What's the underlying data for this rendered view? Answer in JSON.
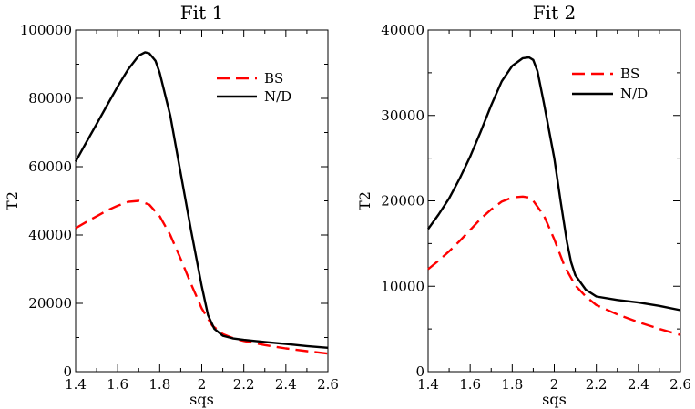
{
  "chart_data": [
    {
      "type": "line",
      "title": "Fit 1",
      "xlabel": "sqs",
      "ylabel": "T2",
      "xlim": [
        1.4,
        2.6
      ],
      "ylim": [
        0,
        100000
      ],
      "xticks": [
        1.4,
        1.6,
        1.8,
        2.0,
        2.2,
        2.4,
        2.6
      ],
      "xtick_labels": [
        "1.4",
        "1.6",
        "1.8",
        "2",
        "2.2",
        "2.4",
        "2.6"
      ],
      "yticks": [
        0,
        20000,
        40000,
        60000,
        80000,
        100000
      ],
      "ytick_labels": [
        "0",
        "20000",
        "40000",
        "60000",
        "80000",
        "100000"
      ],
      "legend_position": "top-right",
      "series": [
        {
          "name": "BS",
          "color": "#ff0000",
          "style": "dashed",
          "x": [
            1.4,
            1.45,
            1.5,
            1.55,
            1.6,
            1.65,
            1.7,
            1.75,
            1.8,
            1.85,
            1.9,
            1.95,
            2.0,
            2.05,
            2.1,
            2.15,
            2.2,
            2.3,
            2.4,
            2.5,
            2.6
          ],
          "y": [
            42000,
            43800,
            45500,
            47200,
            48600,
            49700,
            50000,
            48900,
            45500,
            40000,
            33000,
            25500,
            18500,
            13500,
            11000,
            9800,
            9000,
            7800,
            6800,
            6000,
            5300
          ]
        },
        {
          "name": "N/D",
          "color": "#000000",
          "style": "solid",
          "x": [
            1.4,
            1.45,
            1.5,
            1.55,
            1.6,
            1.65,
            1.7,
            1.73,
            1.75,
            1.78,
            1.8,
            1.85,
            1.9,
            1.95,
            2.0,
            2.03,
            2.06,
            2.1,
            2.15,
            2.2,
            2.3,
            2.4,
            2.5,
            2.6
          ],
          "y": [
            61500,
            67000,
            72500,
            78000,
            83500,
            88500,
            92500,
            93500,
            93200,
            91000,
            87500,
            75000,
            58000,
            41000,
            25000,
            16500,
            12500,
            10500,
            9700,
            9300,
            8700,
            8100,
            7500,
            7000
          ]
        }
      ]
    },
    {
      "type": "line",
      "title": "Fit 2",
      "xlabel": "sqs",
      "ylabel": "T2",
      "xlim": [
        1.4,
        2.6
      ],
      "ylim": [
        0,
        40000
      ],
      "xticks": [
        1.4,
        1.6,
        1.8,
        2.0,
        2.2,
        2.4,
        2.6
      ],
      "xtick_labels": [
        "1.4",
        "1.6",
        "1.8",
        "2",
        "2.2",
        "2.4",
        "2.6"
      ],
      "yticks": [
        0,
        10000,
        20000,
        30000,
        40000
      ],
      "ytick_labels": [
        "0",
        "10000",
        "20000",
        "30000",
        "40000"
      ],
      "legend_position": "top-right",
      "series": [
        {
          "name": "BS",
          "color": "#ff0000",
          "style": "dashed",
          "x": [
            1.4,
            1.45,
            1.5,
            1.55,
            1.6,
            1.65,
            1.7,
            1.75,
            1.8,
            1.85,
            1.88,
            1.9,
            1.95,
            2.0,
            2.05,
            2.1,
            2.15,
            2.2,
            2.3,
            2.4,
            2.5,
            2.6
          ],
          "y": [
            12000,
            13000,
            14100,
            15300,
            16600,
            17900,
            19000,
            19900,
            20400,
            20500,
            20400,
            20000,
            18300,
            15500,
            12300,
            10100,
            8800,
            7800,
            6700,
            5800,
            5000,
            4300
          ]
        },
        {
          "name": "N/D",
          "color": "#000000",
          "style": "solid",
          "x": [
            1.4,
            1.45,
            1.5,
            1.55,
            1.6,
            1.65,
            1.7,
            1.75,
            1.8,
            1.85,
            1.88,
            1.9,
            1.92,
            1.95,
            2.0,
            2.03,
            2.06,
            2.08,
            2.1,
            2.15,
            2.2,
            2.3,
            2.4,
            2.5,
            2.6
          ],
          "y": [
            16700,
            18400,
            20300,
            22600,
            25200,
            28100,
            31200,
            34000,
            35800,
            36700,
            36800,
            36500,
            35200,
            31500,
            25000,
            20000,
            15200,
            12800,
            11300,
            9600,
            8800,
            8400,
            8100,
            7700,
            7200
          ]
        }
      ]
    }
  ]
}
